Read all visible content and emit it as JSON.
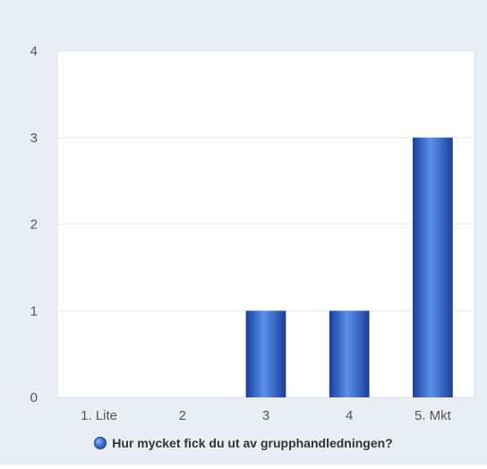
{
  "colors": {
    "background": "#e9eef5",
    "plot_background": "#ffffff",
    "bar_dark": "#1a3f9e",
    "bar_light": "#5a90ea",
    "grid": "#e3e7ee",
    "axis_text": "#555555"
  },
  "legend": {
    "label": "Hur mycket fick du ut av grupphandledningen?",
    "icon": "blue-sphere"
  },
  "chart_data": {
    "type": "bar",
    "categories": [
      "1. Lite",
      "2",
      "3",
      "4",
      "5. Mkt"
    ],
    "series": [
      {
        "name": "Hur mycket fick du ut av grupphandledningen?",
        "values": [
          0,
          0,
          1,
          1,
          3
        ]
      }
    ],
    "yticks": [
      0,
      1,
      2,
      3,
      4
    ],
    "ylim": [
      0,
      4
    ],
    "grid": true,
    "legend_position": "bottom"
  }
}
